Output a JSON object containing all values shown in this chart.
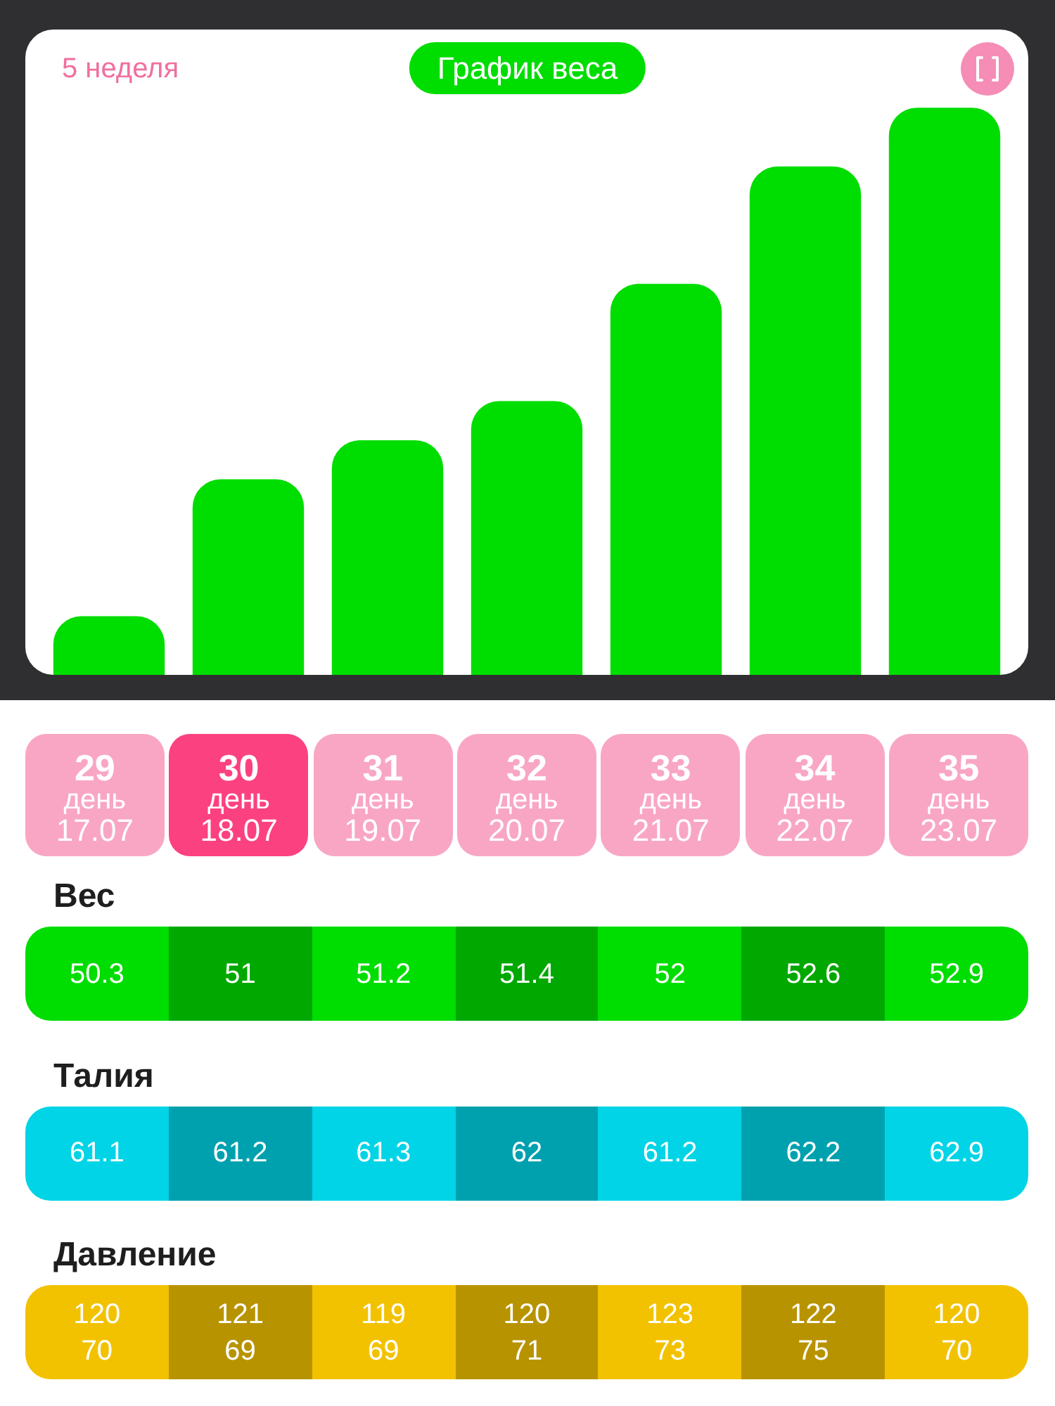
{
  "chart_data": [
    {
      "type": "bar",
      "title": "График веса",
      "subtitle": "5 неделя",
      "categories": [
        "29\nдень\n17.07",
        "30\nдень\n18.07",
        "31\nдень\n19.07",
        "32\nдень\n20.07",
        "33\nдень\n21.07",
        "34\nдень\n22.07",
        "35\nдень\n23.07"
      ],
      "series": [
        {
          "name": "Вес",
          "color": "#00dd00",
          "values": [
            50.3,
            51,
            51.2,
            51.4,
            52,
            52.6,
            52.9
          ]
        }
      ],
      "ylim": [
        50,
        53.3
      ],
      "data_labels": true,
      "tick_labels": "x"
    },
    {
      "type": "other",
      "title": "Талия",
      "color": "#00d4e6",
      "values": [
        61.1,
        61.2,
        61.3,
        62,
        61.2,
        62.2,
        62.9
      ],
      "data_labels": true
    },
    {
      "type": "other",
      "title": "Давление",
      "color": "#f2c200",
      "values": [
        120,
        121,
        119,
        120,
        123,
        122,
        120
      ],
      "data_labels": true
    },
    {
      "type": "other",
      "values": [
        70,
        69,
        69,
        71,
        73,
        75,
        70
      ],
      "data_labels": true
    }
  ]
}
